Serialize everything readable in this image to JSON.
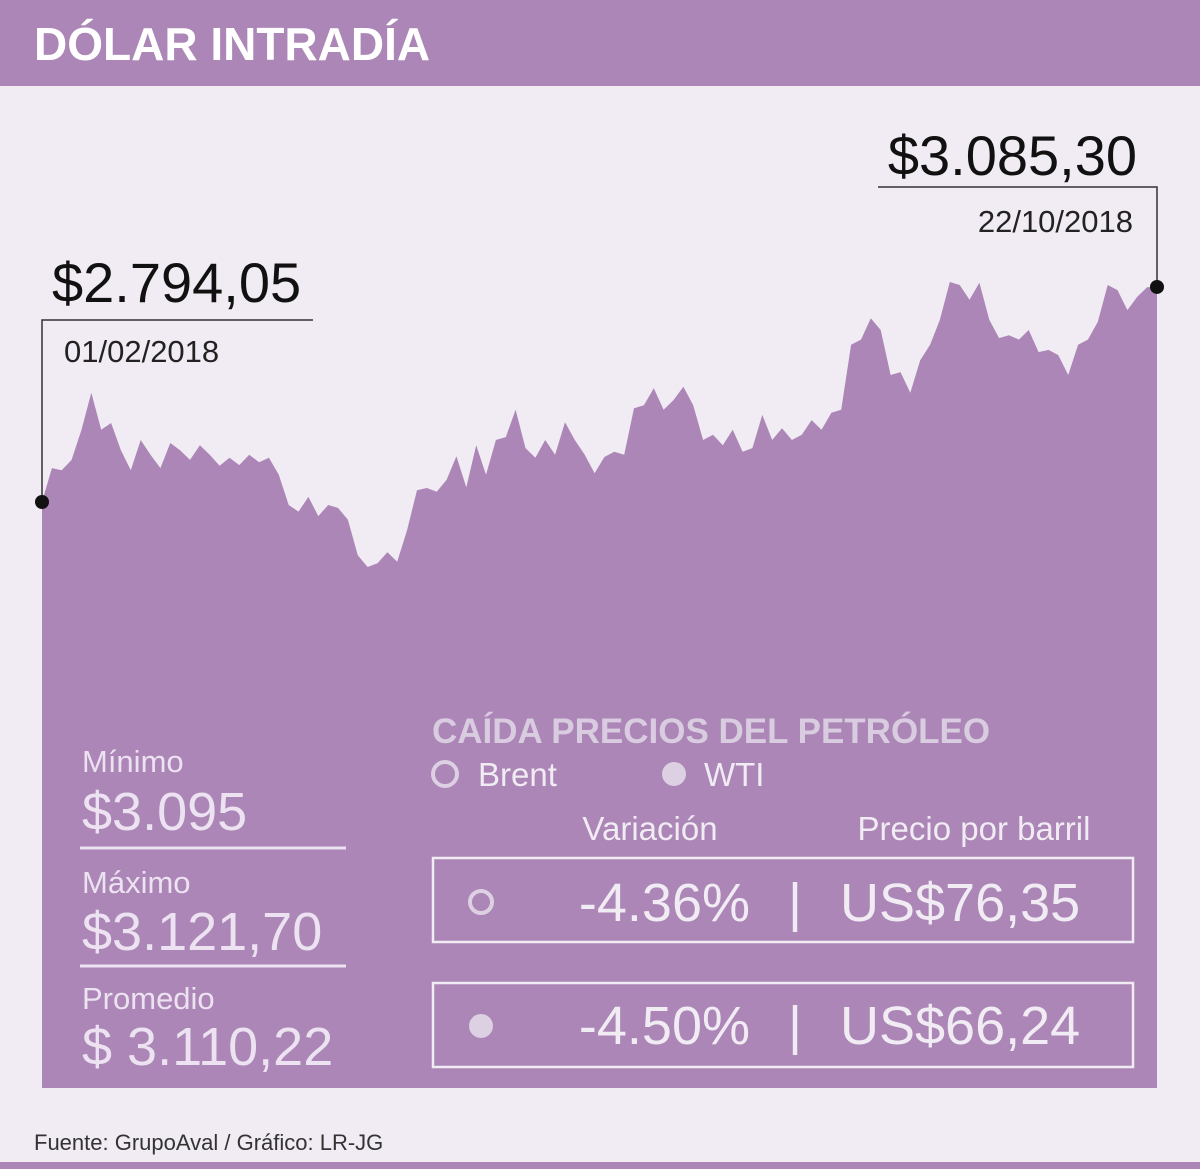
{
  "chart_data": {
    "type": "area",
    "title": "DÓLAR INTRADÍA",
    "series": [
      {
        "color": "#ab86b6",
        "values": [
          2794.05,
          2840,
          2837,
          2851,
          2892,
          2942,
          2892,
          2901,
          2864,
          2837,
          2878,
          2858,
          2840,
          2874,
          2864,
          2851,
          2871,
          2858,
          2843,
          2854,
          2844,
          2858,
          2848,
          2854,
          2831,
          2790,
          2781,
          2801,
          2775,
          2790,
          2786,
          2770,
          2722,
          2706,
          2711,
          2726,
          2713,
          2756,
          2810,
          2813,
          2808,
          2824,
          2856,
          2814,
          2871,
          2831,
          2878,
          2882,
          2919,
          2867,
          2854,
          2878,
          2858,
          2902,
          2878,
          2858,
          2833,
          2855,
          2862,
          2858,
          2921,
          2925,
          2948,
          2919,
          2932,
          2950,
          2925,
          2878,
          2885,
          2871,
          2892,
          2862,
          2867,
          2912,
          2878,
          2894,
          2878,
          2885,
          2905,
          2892,
          2915,
          2919,
          3007,
          3014,
          3043,
          3027,
          2966,
          2970,
          2942,
          2986,
          3007,
          3041,
          3092,
          3088,
          3068,
          3091,
          3041,
          3016,
          3020,
          3014,
          3027,
          2997,
          3000,
          2993,
          2966,
          3007,
          3014,
          3038,
          3088,
          3081,
          3054,
          3072,
          3085,
          3085.3
        ]
      }
    ],
    "annotations": [
      {
        "value": 2794.05,
        "label": "$2.794,05",
        "date": "01/02/2018"
      },
      {
        "value": 3085.3,
        "label": "$3.085,30",
        "date": "22/10/2018"
      }
    ]
  },
  "stats": [
    {
      "label": "Mínimo",
      "value": "$3.095"
    },
    {
      "label": "Máximo",
      "value": "$3.121,70"
    },
    {
      "label": "Promedio",
      "value": "$ 3.110,22"
    }
  ],
  "oil": {
    "title": "CAÍDA PRECIOS DEL PETRÓLEO",
    "legend": [
      "Brent",
      "WTI"
    ],
    "headers": [
      "Variación",
      "Precio por barril"
    ],
    "separator": "|",
    "rows": [
      {
        "variation": "-4.36%",
        "price": "US$76,35"
      },
      {
        "variation": "-4.50%",
        "price": "US$66,24"
      }
    ]
  },
  "source": "Fuente:  GrupoAval / Gráfico: LR-JG"
}
